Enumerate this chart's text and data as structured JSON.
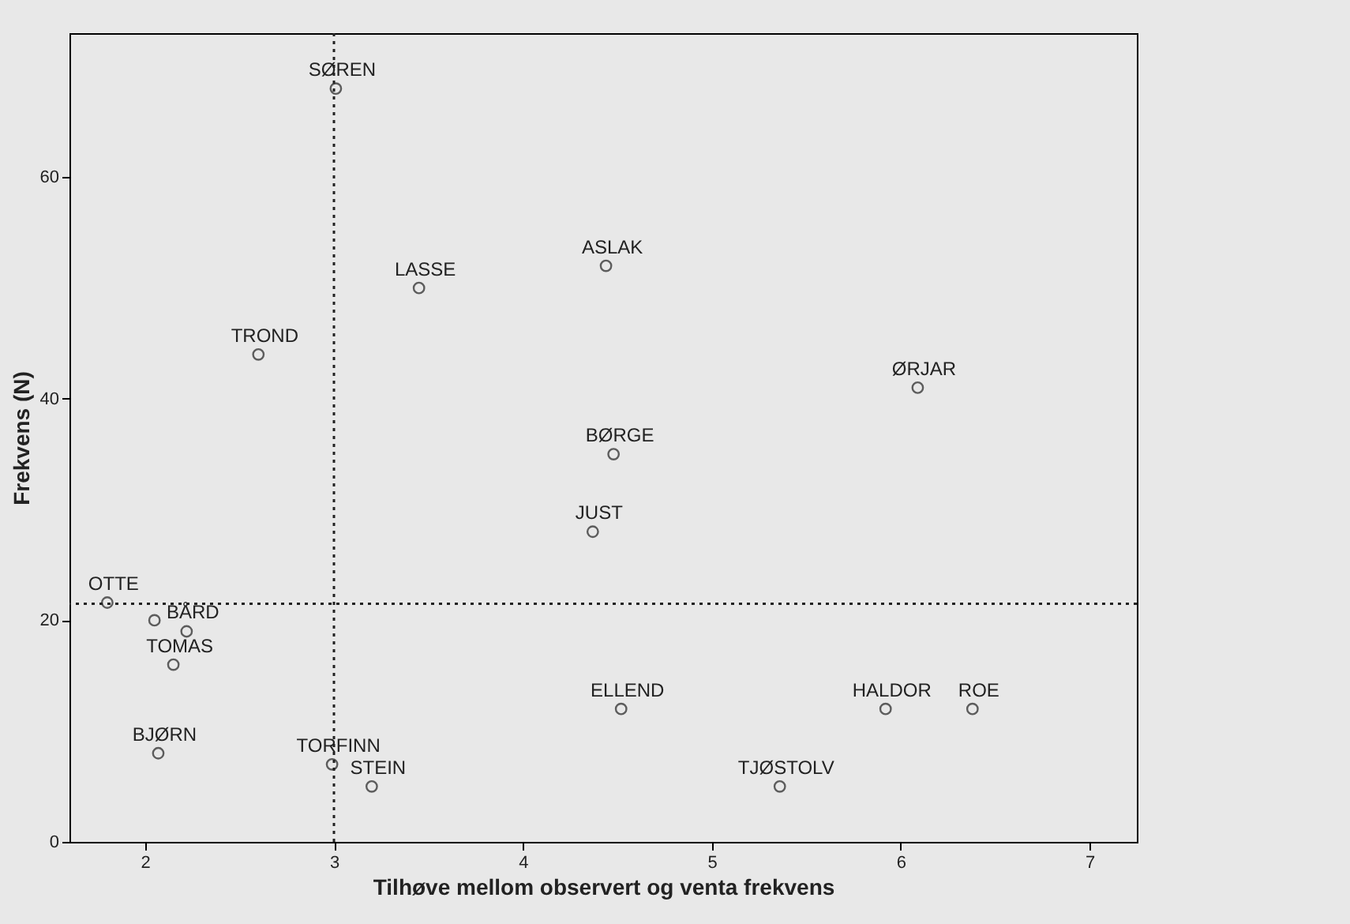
{
  "chart_data": {
    "type": "scatter",
    "xlabel": "Tilhøve mellom observert og venta frekvens",
    "ylabel": "Frekvens (N)",
    "x": [
      3.01,
      3.45,
      4.44,
      2.6,
      6.09,
      4.48,
      4.37,
      1.8,
      2.05,
      2.22,
      2.15,
      4.52,
      5.92,
      6.38,
      2.07,
      2.99,
      3.2,
      5.36
    ],
    "series": [
      {
        "color": "#222222",
        "values": [
          68,
          50,
          52,
          44,
          41,
          35,
          28,
          21.6,
          20,
          19,
          16,
          12,
          12,
          12,
          8,
          7,
          5,
          5
        ],
        "value_labels": [
          "SØREN",
          "LASSE",
          "ASLAK",
          "TROND",
          "ØRJAR",
          "BØRGE",
          "JUST",
          "OTTE",
          null,
          "BÅRD",
          "TOMAS",
          "ELLEND",
          "HALDOR",
          "ROE",
          "BJØRN",
          "TORFINN",
          "STEIN",
          "TJØSTOLV"
        ]
      }
    ],
    "xlim": [
      1.6,
      7.25
    ],
    "ylim": [
      0,
      73
    ],
    "xticks": [
      2,
      3,
      4,
      5,
      6,
      7
    ],
    "yticks": [
      0,
      20,
      40,
      60
    ],
    "marker": "circle",
    "grid": false,
    "ref_lines": [
      {
        "axis": "x",
        "value": 3,
        "line_style": "dotted",
        "color": "#222222"
      },
      {
        "axis": "y",
        "value": 21.5,
        "line_style": "dotted",
        "color": "#222222"
      }
    ]
  }
}
